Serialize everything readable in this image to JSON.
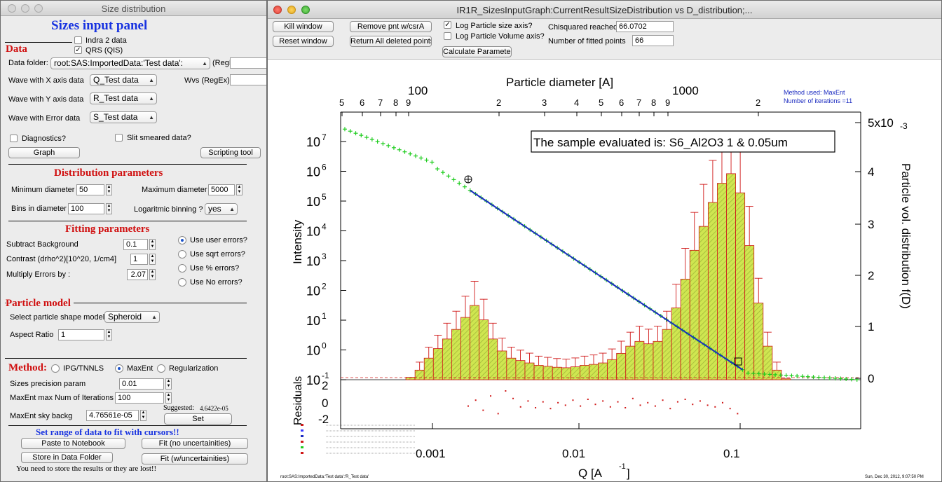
{
  "sizes_window": {
    "title": "Size distribution",
    "panel_title": "Sizes input panel",
    "data_section": {
      "heading": "Data",
      "indra_label": "Indra 2 data",
      "indra_checked": false,
      "qrs_label": "QRS (QIS)",
      "qrs_checked": true,
      "folder_label": "Data folder:",
      "folder_value": "root:SAS:ImportedData:'Test data':",
      "regex_label": "(RegEx)",
      "wave_x_label": "Wave with X axis data",
      "wave_x_value": "Q_Test data",
      "wvs_label": "Wvs (RegEx)",
      "wave_y_label": "Wave with Y axis data",
      "wave_y_value": "R_Test data",
      "wave_err_label": "Wave with Error data",
      "wave_err_value": "S_Test data",
      "diagnostics_label": "Diagnostics?",
      "slit_label": "Slit smeared data?",
      "graph_button": "Graph",
      "scripting_button": "Scripting tool"
    },
    "distribution": {
      "heading": "Distribution parameters",
      "min_label": "Minimum diameter",
      "min_value": "50",
      "max_label": "Maximum diameter",
      "max_value": "5000",
      "bins_label": "Bins in diameter",
      "bins_value": "100",
      "log_label": "Logaritmic binning ?",
      "log_value": "yes"
    },
    "fitting": {
      "heading": "Fitting parameters",
      "bg_label": "Subtract Background",
      "bg_value": "0.1",
      "contrast_label": "Contrast (drho^2)[10^20, 1/cm4]",
      "contrast_value": "1",
      "mult_label": "Multiply Errors by :",
      "mult_value": "2.07",
      "err_options": [
        "Use user errors?",
        "Use sqrt errors?",
        "Use % errors?",
        "Use No errors?"
      ],
      "err_selected": "Use user errors?"
    },
    "particle": {
      "heading": "Particle model",
      "shape_label": "Select particle shape model",
      "shape_value": "Spheroid",
      "aspect_label": "Aspect Ratio",
      "aspect_value": "1"
    },
    "method": {
      "heading": "Method:",
      "options": [
        "IPG/TNNLS",
        "MaxEnt",
        "Regularization"
      ],
      "selected": "MaxEnt",
      "precision_label": "Sizes precision param",
      "precision_value": "0.01",
      "iter_label": "MaxEnt max Num of Iterations",
      "iter_value": "100",
      "sky_label": "MaxEnt sky backg",
      "sky_value": "4.76561e-05",
      "suggested_label": "Suggested:",
      "suggested_value": "4.6422e-05",
      "set_button": "Set"
    },
    "range": {
      "heading": "Set range of data to fit with cursors!!",
      "paste_button": "Paste to Notebook",
      "fit_no_unc_button": "Fit (no uncertainities)",
      "store_button": "Store in Data Folder",
      "fit_unc_button": "Fit (w/uncertainities)",
      "warning": "You need to store the results or they are lost!!"
    }
  },
  "graph_window": {
    "title": "IR1R_SizesInputGraph:CurrentResultSizeDistribution vs D_distribution;...",
    "toolbar": {
      "kill_button": "Kill window",
      "reset_button": "Reset window",
      "remove_button": "Remove pnt w/csrA",
      "return_button": "Return All deleted points",
      "log_size_label": "Log Particle size axis?",
      "log_size_checked": true,
      "log_vol_label": "Log Particle Volume axis?",
      "log_vol_checked": false,
      "calc_button": "Calculate Parameter",
      "chisq_label": "Chisquared reached",
      "chisq_value": "66.0702",
      "npts_label": "Number of fitted points",
      "npts_value": "66"
    }
  },
  "chart_data": {
    "type": "scatter",
    "title": "",
    "top_axis_label": "Particle diameter [A]",
    "top_ticks_major": [
      "100",
      "1000"
    ],
    "top_ticks_minor": [
      "5",
      "6",
      "7",
      "8",
      "9",
      "2",
      "3",
      "4",
      "5",
      "6",
      "7",
      "8",
      "9",
      "2"
    ],
    "left_axis_label": "Intensity",
    "left_ticks": [
      "10",
      "10",
      "10",
      "10",
      "10",
      "10",
      "10",
      "10",
      "10"
    ],
    "left_exponents": [
      "7",
      "6",
      "5",
      "4",
      "3",
      "2",
      "1",
      "0",
      "-1"
    ],
    "right_axis_label": "Particle vol. distribution f(D)",
    "right_ticks": [
      "5x10",
      "4",
      "3",
      "2",
      "1",
      "0"
    ],
    "right_exponent": "-3",
    "bottom_axis_label": "Q [A",
    "bottom_axis_exponent": "-1",
    "bottom_axis_suffix": "]",
    "bottom_ticks": [
      "0.001",
      "0.01",
      "0.1"
    ],
    "residuals_label": "Residuals",
    "residual_ticks": [
      "2",
      "0",
      "-2"
    ],
    "annotation_box": "The sample evaluated is:  S6_Al2O3 1 & 0.05um",
    "method_note_1": "Method used: MaxEnt",
    "method_note_2": "Number of iterations =11",
    "footer_left": "root:SAS:ImportedData:'Test data':'R_Test data'",
    "footer_right": "Sun, Dec 30, 2012, 9:07:50 PM",
    "size_distribution_volume": [
      0.0,
      0.05,
      0.2,
      0.45,
      0.65,
      0.85,
      1.05,
      1.3,
      1.55,
      1.25,
      0.85,
      0.6,
      0.45,
      0.4,
      0.35,
      0.3,
      0.28,
      0.26,
      0.25,
      0.27,
      0.3,
      0.32,
      0.35,
      0.42,
      0.55,
      0.7,
      0.8,
      0.75,
      0.8,
      1.05,
      1.5,
      2.1,
      2.7,
      3.2,
      3.7,
      4.1,
      4.3,
      3.9,
      2.8,
      1.6,
      0.7,
      0.2,
      0.02
    ],
    "residual_values": [
      -0.3,
      0.4,
      -0.8,
      0.9,
      -1.2,
      1.5,
      0.6,
      -0.4,
      0.3,
      -0.5,
      0.2,
      -0.6,
      0.1,
      -0.2,
      0.4,
      -0.3,
      0.5,
      -0.1,
      0.3,
      -0.4,
      0.2,
      -0.5,
      0.6,
      -0.2,
      0.1,
      -0.3,
      0.4,
      -0.6,
      0.2,
      0.5,
      -0.1,
      0.3,
      -0.2,
      -0.4,
      0.1,
      -0.6,
      -1.2
    ],
    "colors": {
      "fit_line": "#1a2ac0",
      "data_points": "#1ecc1e",
      "bars_fill": "#c7e34a",
      "bars_edge": "#d01818",
      "residuals": "#d01818"
    }
  }
}
